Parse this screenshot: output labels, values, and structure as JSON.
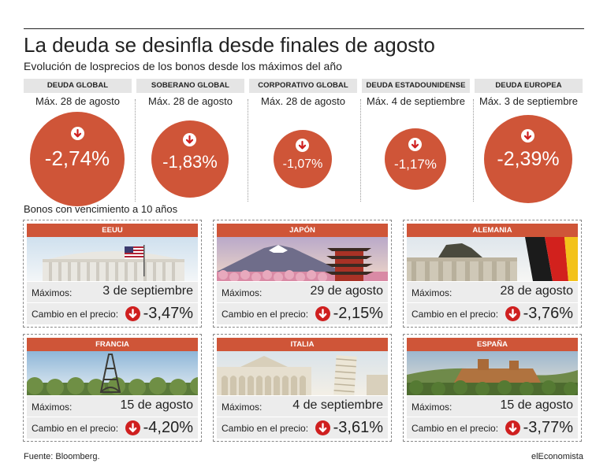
{
  "header": {
    "title": "La deuda se desinfla desde finales de agosto",
    "subtitle": "Evolución de losprecios de los bonos desde los máximos del año"
  },
  "global": [
    {
      "label": "DEUDA GLOBAL",
      "date": "Máx. 28 de agosto",
      "value": "-2,74%"
    },
    {
      "label": "SOBERANO GLOBAL",
      "date": "Máx. 28 de agosto",
      "value": "-1,83%"
    },
    {
      "label": "CORPORATIVO GLOBAL",
      "date": "Máx. 28 de agosto",
      "value": "-1,07%"
    },
    {
      "label": "DEUDA ESTADOUNIDENSE",
      "date": "Máx. 4 de septiembre",
      "value": "-1,17%"
    },
    {
      "label": "DEUDA EUROPEA",
      "date": "Máx. 3 de septiembre",
      "value": "-2,39%"
    }
  ],
  "section_title": "Bonos con vencimiento a 10 años",
  "row_labels": {
    "maximos": "Máximos:",
    "cambio": "Cambio en el precio:"
  },
  "countries": [
    {
      "name": "EEUU",
      "max_date": "3 de septiembre",
      "change": "-3,47%"
    },
    {
      "name": "JAPÓN",
      "max_date": "29 de agosto",
      "change": "-2,15%"
    },
    {
      "name": "ALEMANIA",
      "max_date": "28 de agosto",
      "change": "-3,76%"
    },
    {
      "name": "FRANCIA",
      "max_date": "15 de agosto",
      "change": "-4,20%"
    },
    {
      "name": "ITALIA",
      "max_date": "4 de septiembre",
      "change": "-3,61%"
    },
    {
      "name": "ESPAÑA",
      "max_date": "15 de agosto",
      "change": "-3,77%"
    }
  ],
  "footer": {
    "source": "Fuente: Bloomberg.",
    "brand": "elEconomista"
  },
  "colors": {
    "accent": "#cf5538",
    "arrow_red": "#cf1f1f",
    "header_gray": "#e5e5e5",
    "row_gray": "#ececec"
  },
  "chart_data": {
    "type": "bubble",
    "categories": [
      "DEUDA GLOBAL",
      "SOBERANO GLOBAL",
      "CORPORATIVO GLOBAL",
      "DEUDA ESTADOUNIDENSE",
      "DEUDA EUROPEA"
    ],
    "values": [
      -2.74,
      -1.83,
      -1.07,
      -1.17,
      -2.39
    ],
    "bonds_10y": {
      "categories": [
        "EEUU",
        "JAPÓN",
        "ALEMANIA",
        "FRANCIA",
        "ITALIA",
        "ESPAÑA"
      ],
      "values": [
        -3.47,
        -2.15,
        -3.76,
        -4.2,
        -3.61,
        -3.77
      ]
    }
  }
}
